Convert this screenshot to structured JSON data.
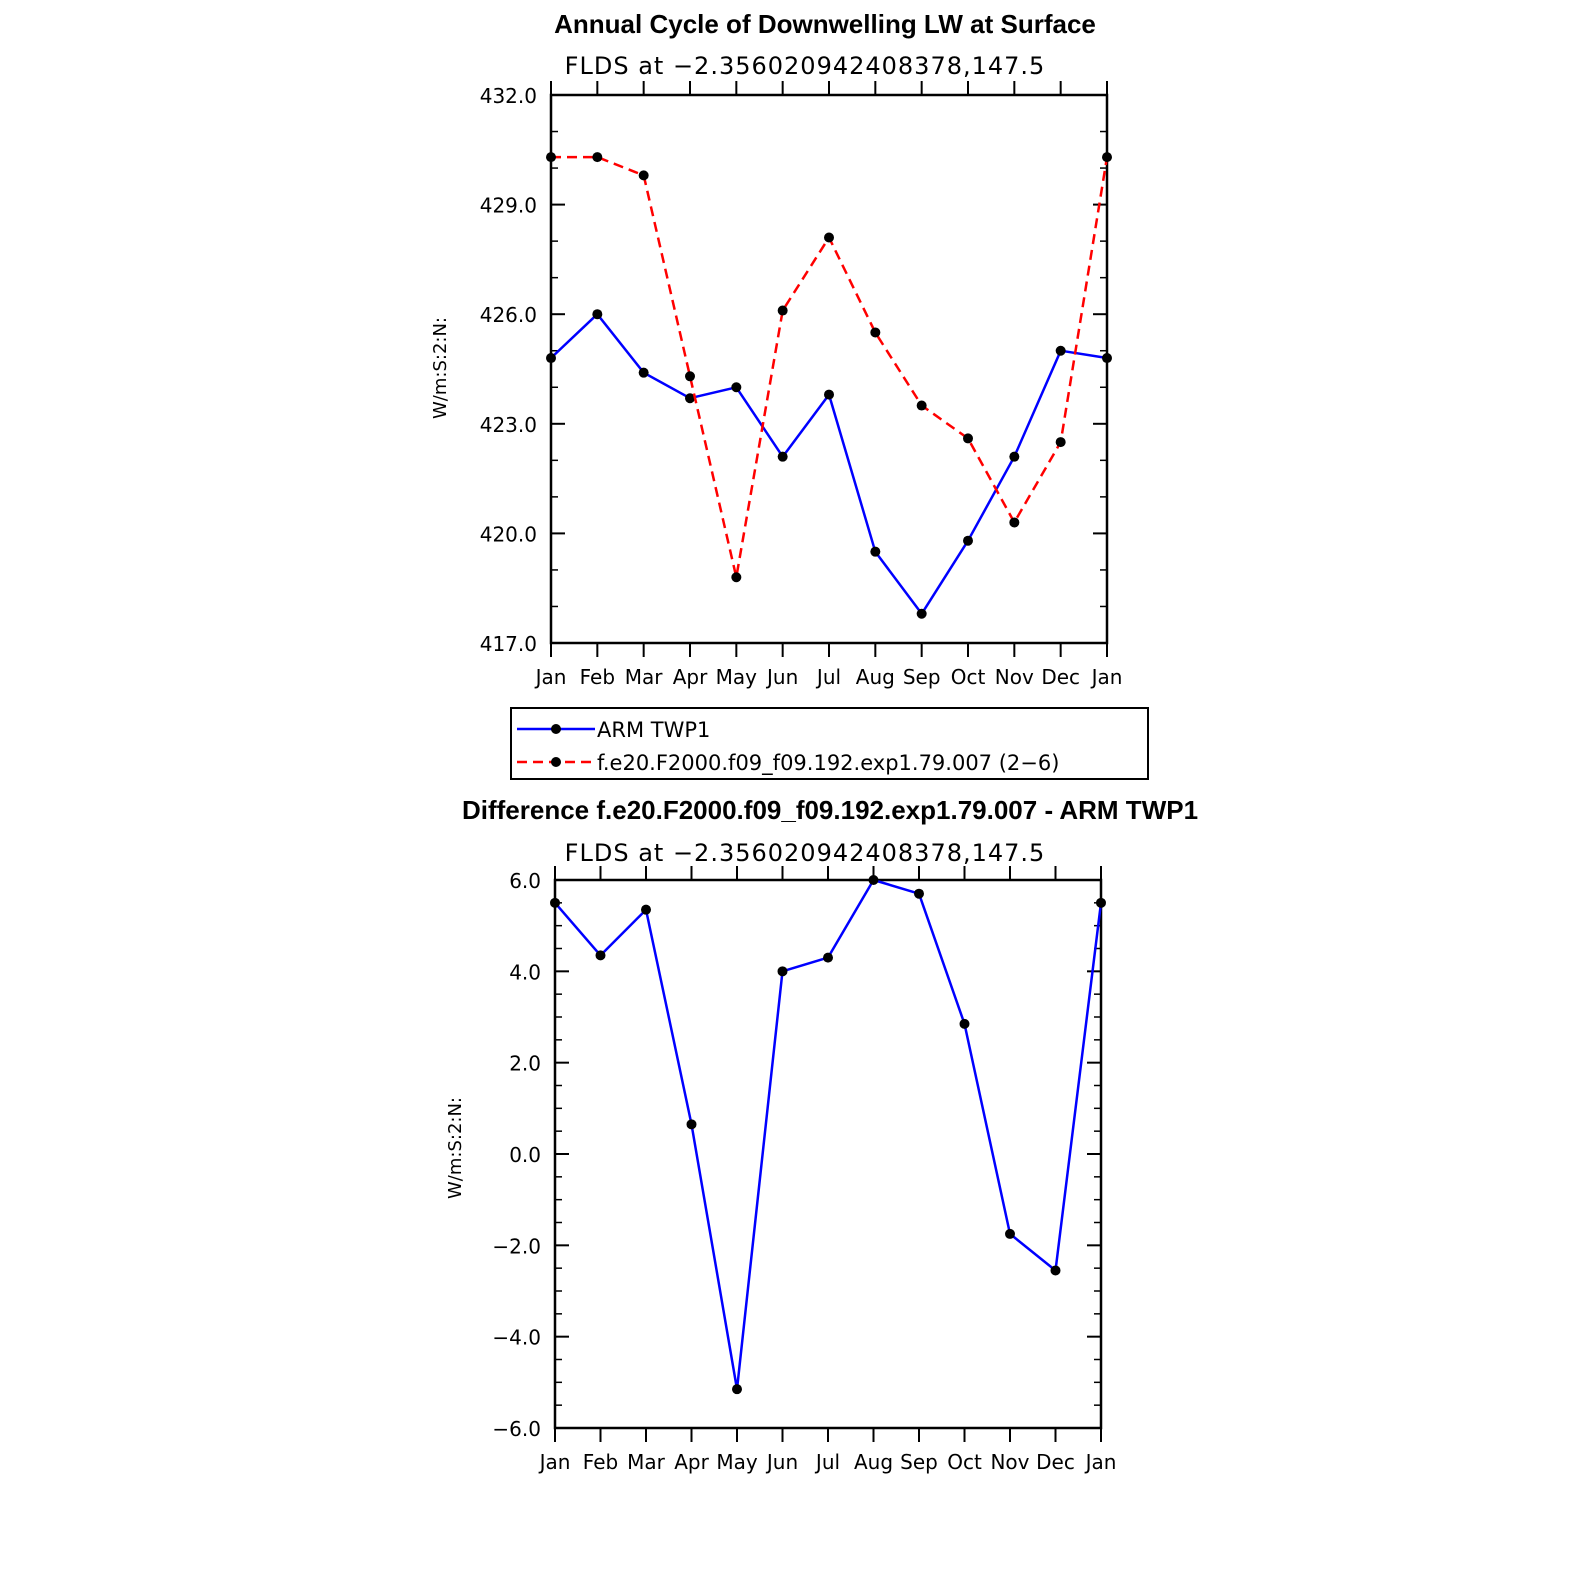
{
  "chart_data": [
    {
      "type": "line",
      "title": "Annual Cycle of Downwelling LW at Surface",
      "subtitle": "FLDS at −2.356020942408378,147.5",
      "ylabel": "W/m:S:2:N:",
      "xlabel": "",
      "categories": [
        "Jan",
        "Feb",
        "Mar",
        "Apr",
        "May",
        "Jun",
        "Jul",
        "Aug",
        "Sep",
        "Oct",
        "Nov",
        "Dec",
        "Jan"
      ],
      "ylim": [
        417,
        432
      ],
      "yticks": [
        "432.0",
        "429.0",
        "426.0",
        "423.0",
        "420.0",
        "417.0"
      ],
      "ytick_values": [
        432,
        429,
        426,
        423,
        420,
        417
      ],
      "series": [
        {
          "name": "ARM  TWP1",
          "color": "#0000ff",
          "dash": "solid",
          "values": [
            424.8,
            426.0,
            424.4,
            423.7,
            424.0,
            422.1,
            423.8,
            419.5,
            417.8,
            419.8,
            422.1,
            425.0,
            424.8
          ]
        },
        {
          "name": "f.e20.F2000.f09_f09.192.exp1.79.007 (2−6)",
          "color": "#ff0000",
          "dash": "dashed",
          "values": [
            430.3,
            430.3,
            429.8,
            424.3,
            418.8,
            426.1,
            428.1,
            425.5,
            423.5,
            422.6,
            420.3,
            422.5,
            430.3
          ]
        }
      ],
      "legend_position": "below"
    },
    {
      "type": "line",
      "title": "Difference f.e20.F2000.f09_f09.192.exp1.79.007 - ARM TWP1",
      "subtitle": "FLDS at −2.356020942408378,147.5",
      "ylabel": "W/m:S:2:N:",
      "xlabel": "",
      "categories": [
        "Jan",
        "Feb",
        "Mar",
        "Apr",
        "May",
        "Jun",
        "Jul",
        "Aug",
        "Sep",
        "Oct",
        "Nov",
        "Dec",
        "Jan"
      ],
      "ylim": [
        -6,
        6
      ],
      "yticks": [
        "6.0",
        "4.0",
        "2.0",
        "0.0",
        "−2.0",
        "−4.0",
        "−6.0"
      ],
      "ytick_values": [
        6,
        4,
        2,
        0,
        -2,
        -4,
        -6
      ],
      "series": [
        {
          "name": "",
          "color": "#0000ff",
          "dash": "solid",
          "values": [
            5.5,
            4.35,
            5.35,
            0.65,
            -5.15,
            4.0,
            4.3,
            6.0,
            5.7,
            2.85,
            -1.75,
            -2.55,
            5.5
          ]
        }
      ]
    }
  ]
}
